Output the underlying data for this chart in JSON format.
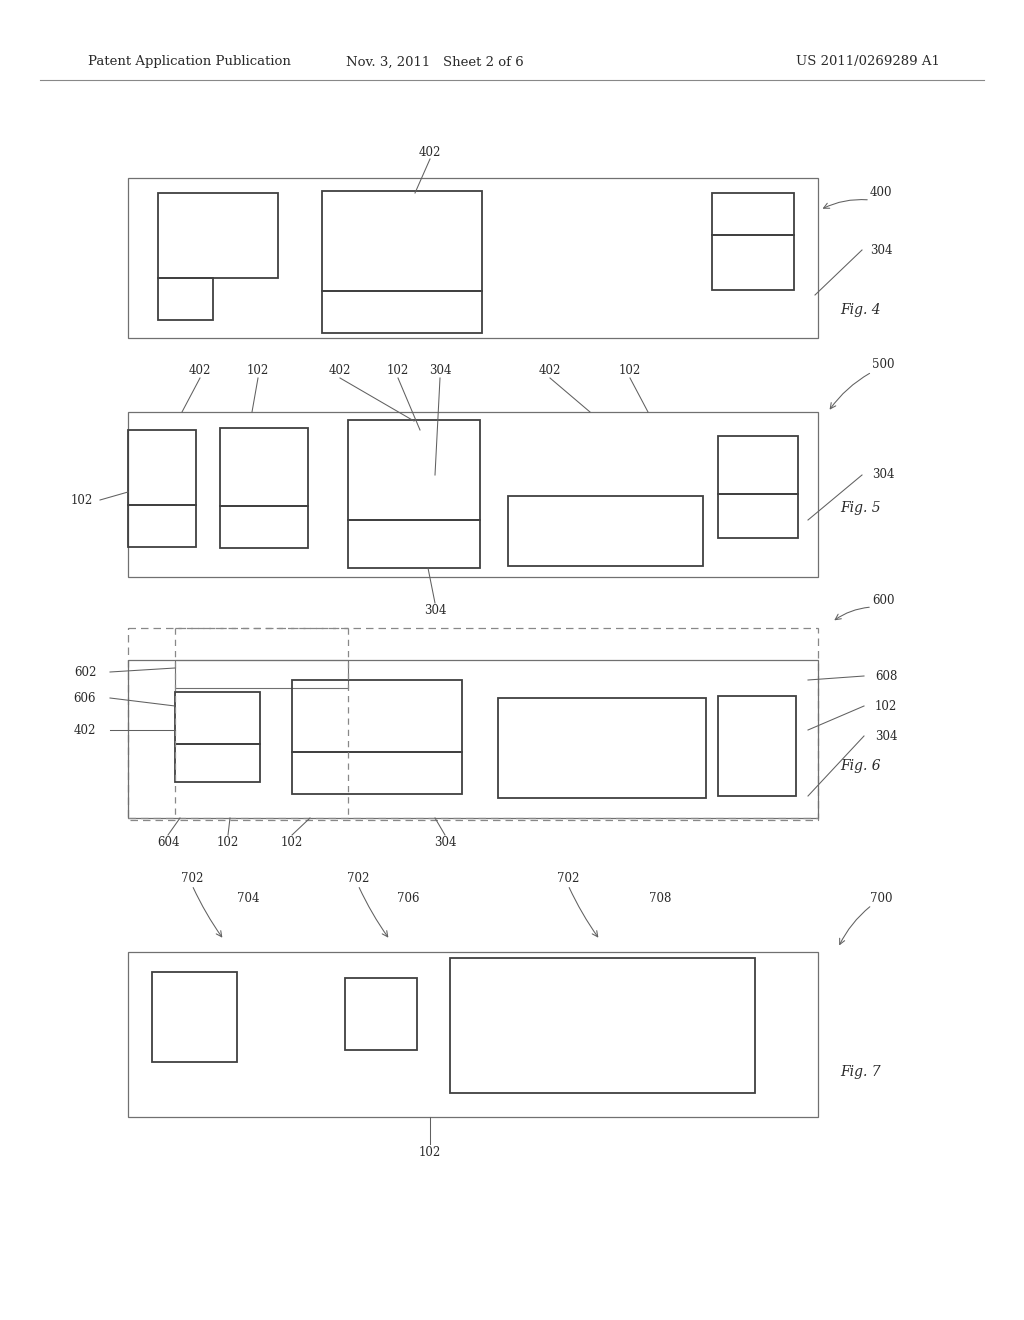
{
  "bg_color": "#ffffff",
  "text_color": "#2a2a2a",
  "line_color": "#404040",
  "thin_color": "#707070",
  "header_left": "Patent Application Publication",
  "header_mid": "Nov. 3, 2011   Sheet 2 of 6",
  "header_right": "US 2011/0269289 A1"
}
